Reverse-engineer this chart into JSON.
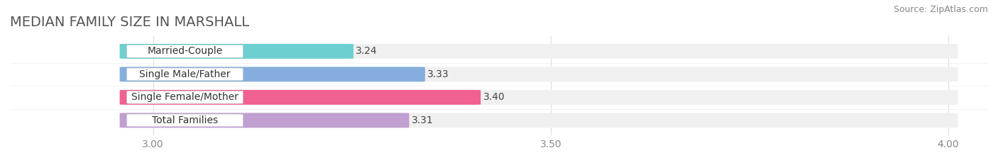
{
  "title": "MEDIAN FAMILY SIZE IN MARSHALL",
  "source": "Source: ZipAtlas.com",
  "categories": [
    "Married-Couple",
    "Single Male/Father",
    "Single Female/Mother",
    "Total Families"
  ],
  "values": [
    3.24,
    3.33,
    3.4,
    3.31
  ],
  "bar_colors": [
    "#6dcfcf",
    "#85aede",
    "#f06090",
    "#c0a0d0"
  ],
  "xlim": [
    2.82,
    4.05
  ],
  "xstart": 2.97,
  "xticks": [
    3.0,
    3.5,
    4.0
  ],
  "xtick_labels": [
    "3.00",
    "3.50",
    "4.00"
  ],
  "bar_height": 0.62,
  "background_color": "#ffffff",
  "bar_bg_color": "#f0f0f0",
  "title_fontsize": 14,
  "label_fontsize": 10,
  "value_fontsize": 10,
  "source_fontsize": 9,
  "title_color": "#555555",
  "source_color": "#888888",
  "value_color": "#444444",
  "label_color": "#333333"
}
